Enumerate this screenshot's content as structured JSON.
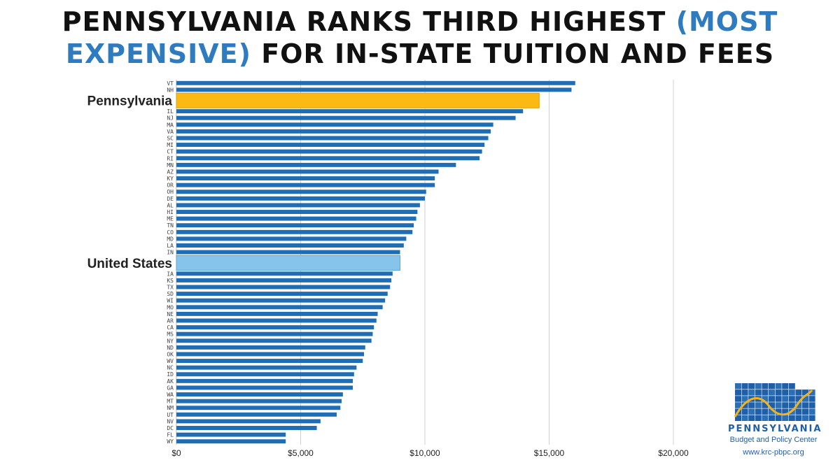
{
  "chart_data": {
    "type": "bar",
    "orientation": "horizontal",
    "title_line1": "PENNSYLVANIA RANKS THIRD HIGHEST",
    "title_highlight1": "(MOST",
    "title_highlight2": "EXPENSIVE)",
    "title_line2": "FOR IN-STATE TUITION AND FEES",
    "xlim": [
      0,
      20000
    ],
    "x_ticks": [
      0,
      5000,
      10000,
      15000,
      20000
    ],
    "x_tick_labels": [
      "$0",
      "$5,000",
      "$10,000",
      "$15,000",
      "$20,000"
    ],
    "grid": true,
    "highlight_labels": {
      "PA": "Pennsylvania",
      "US": "United States"
    },
    "colors": {
      "bar": "#1f6db5",
      "pennsylvania": "#fbb913",
      "united_states": "#86c4ec",
      "grid": "#cfcfcf"
    },
    "categories": [
      "VT",
      "NH",
      "PA",
      "IL",
      "NJ",
      "MA",
      "VA",
      "SC",
      "MI",
      "CT",
      "RI",
      "MN",
      "AZ",
      "KY",
      "OR",
      "OH",
      "DE",
      "AL",
      "HI",
      "ME",
      "TN",
      "CO",
      "MD",
      "LA",
      "IN",
      "US",
      "IA",
      "KS",
      "TX",
      "SD",
      "WI",
      "MO",
      "NE",
      "AR",
      "CA",
      "MS",
      "NY",
      "ND",
      "OK",
      "WV",
      "NC",
      "ID",
      "AK",
      "GA",
      "WA",
      "MT",
      "NM",
      "UT",
      "NV",
      "DC",
      "FL",
      "WY"
    ],
    "values": [
      16050,
      15900,
      14600,
      13950,
      13650,
      12750,
      12650,
      12550,
      12400,
      12300,
      12200,
      11250,
      10550,
      10400,
      10400,
      10050,
      10000,
      9800,
      9700,
      9650,
      9550,
      9500,
      9250,
      9150,
      9000,
      9000,
      8700,
      8650,
      8600,
      8500,
      8400,
      8300,
      8100,
      8050,
      7950,
      7900,
      7850,
      7600,
      7550,
      7500,
      7250,
      7150,
      7100,
      7100,
      6700,
      6650,
      6600,
      6450,
      5800,
      5650,
      4400,
      4400
    ]
  },
  "logo": {
    "name": "PENNSYLVANIA",
    "subtitle": "Budget and Policy Center",
    "url": "www.krc-pbpc.org",
    "icon": "pennsylvania-map-icon",
    "colors": {
      "blue": "#1f5fa8",
      "line": "#f5b31b"
    }
  }
}
